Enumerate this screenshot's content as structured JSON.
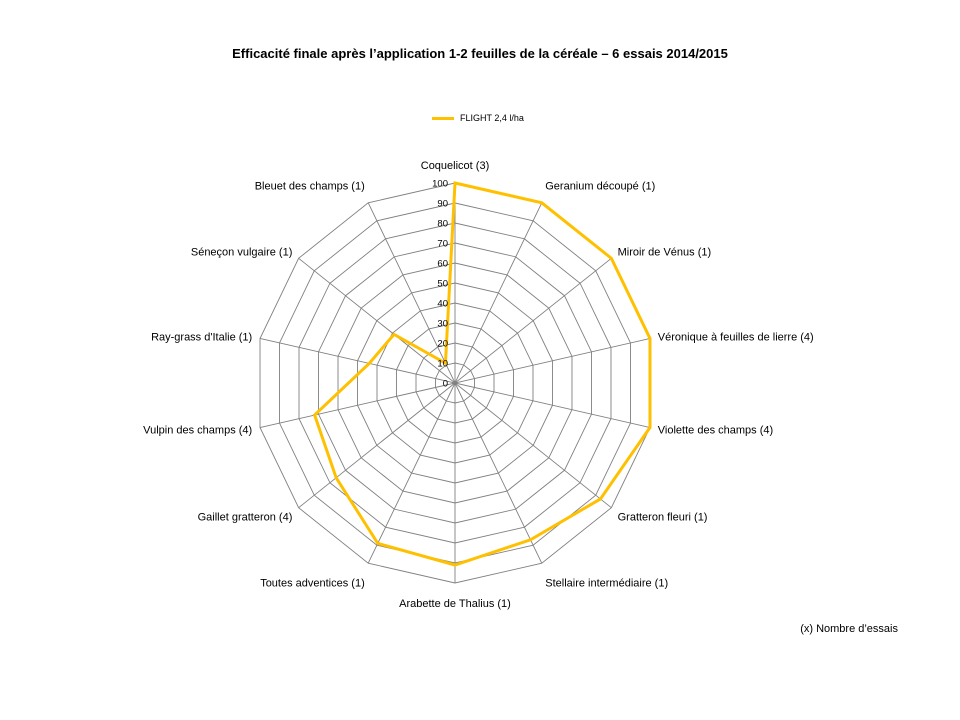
{
  "chart_data": {
    "type": "radar",
    "title": "Efficacité finale après l’application 1-2 feuilles de la céréale – 6 essais 2014/2015",
    "categories": [
      "Coquelicot (3)",
      "Geranium découpé (1)",
      "Miroir de Vénus (1)",
      "Véronique à feuilles de lierre (4)",
      "Violette des champs (4)",
      "Gratteron fleuri (1)",
      "Stellaire intermédiaire (1)",
      "Arabette de Thalius (1)",
      "Toutes adventices (1)",
      "Gaillet gratteron (4)",
      "Vulpin des champs (4)",
      "Ray-grass d'Italie (1)",
      "Séneçon vulgaire (1)",
      "Bleuet des champs (1)"
    ],
    "series": [
      {
        "name": "FLIGHT 2,4 l/ha",
        "color": "#FFC000",
        "values": [
          100,
          100,
          100,
          100,
          100,
          93,
          87,
          91,
          89,
          76,
          72,
          44,
          39,
          11
        ]
      }
    ],
    "rlim": [
      0,
      100
    ],
    "ticks": [
      0,
      10,
      20,
      30,
      40,
      50,
      60,
      70,
      80,
      90,
      100
    ],
    "grid": true,
    "legend_position": "top",
    "footnote": "(x) Nombre d’essais"
  }
}
